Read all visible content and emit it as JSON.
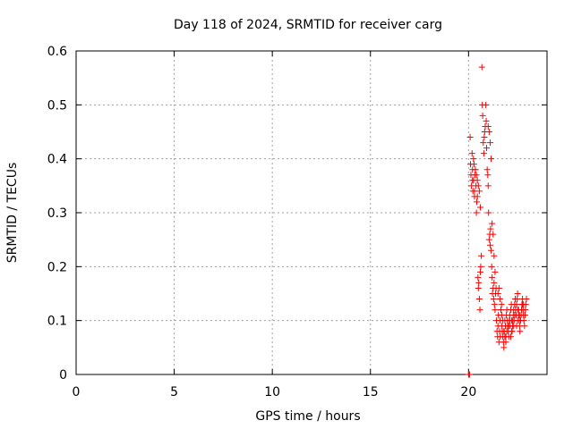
{
  "chart_data": {
    "type": "scatter",
    "title": "Day 118 of 2024, SRMTID for receiver carg",
    "xlabel": "GPS time / hours",
    "ylabel": "SRMTID / TECUs",
    "xlim": [
      0,
      24
    ],
    "ylim": [
      0,
      0.6
    ],
    "xticks": [
      0,
      5,
      10,
      15,
      20
    ],
    "xtick_labels": [
      "0",
      "5",
      "10",
      "15",
      "20"
    ],
    "yticks": [
      0,
      0.1,
      0.2,
      0.3,
      0.4,
      0.5,
      0.6
    ],
    "ytick_labels": [
      "0",
      "0.1",
      "0.2",
      "0.3",
      "0.4",
      "0.5",
      "0.6"
    ],
    "grid": true,
    "marker": "+",
    "series": [
      {
        "name": "SRMTID",
        "color": "#ff0000",
        "x": [
          20.0,
          20.02,
          20.05,
          20.08,
          20.1,
          20.12,
          20.15,
          20.18,
          20.2,
          20.22,
          20.25,
          20.28,
          20.3,
          20.32,
          20.35,
          20.38,
          20.4,
          20.42,
          20.45,
          20.48,
          20.5,
          20.52,
          20.55,
          20.58,
          20.6,
          20.62,
          20.65,
          20.68,
          20.7,
          20.72,
          20.75,
          20.78,
          20.8,
          20.82,
          20.85,
          20.88,
          20.9,
          20.92,
          20.95,
          20.98,
          21.0,
          21.02,
          21.05,
          21.08,
          21.1,
          21.12,
          21.15,
          21.18,
          21.2,
          21.22,
          21.25,
          21.28,
          21.3,
          21.32,
          21.35,
          21.38,
          21.4,
          21.42,
          21.45,
          21.48,
          21.5,
          21.52,
          21.55,
          21.58,
          21.6,
          21.62,
          21.65,
          21.68,
          21.7,
          21.72,
          21.75,
          21.78,
          21.8,
          21.82,
          21.85,
          21.88,
          21.9,
          21.92,
          21.95,
          21.98,
          22.0,
          22.02,
          22.05,
          22.08,
          22.1,
          22.12,
          22.15,
          22.18,
          22.2,
          22.22,
          22.25,
          22.28,
          22.3,
          22.32,
          22.35,
          22.38,
          22.4,
          22.42,
          22.45,
          22.48,
          22.5,
          22.52,
          22.55,
          22.58,
          22.6,
          22.62,
          22.65,
          22.68,
          22.7,
          22.72,
          22.75,
          22.78,
          22.8,
          22.82,
          22.85,
          22.88,
          22.9,
          22.92,
          22.95,
          20.2,
          20.3,
          20.4,
          20.5,
          20.6,
          21.0,
          21.1,
          21.2,
          21.3,
          21.5,
          21.6,
          21.7,
          21.8,
          21.9,
          22.0,
          22.1,
          22.2,
          22.3,
          22.4,
          22.5,
          22.6,
          22.7,
          22.8,
          20.25,
          20.35,
          20.45,
          20.55,
          21.05,
          21.15,
          21.25,
          21.35,
          21.55,
          21.65,
          21.75,
          21.85,
          21.95,
          22.05,
          22.15,
          22.25,
          22.35,
          22.45,
          22.55,
          22.65,
          22.75
        ],
        "y": [
          0.0,
          0.0,
          0.0,
          0.44,
          0.39,
          0.37,
          0.35,
          0.41,
          0.38,
          0.34,
          0.36,
          0.39,
          0.33,
          0.37,
          0.38,
          0.35,
          0.3,
          0.32,
          0.36,
          0.18,
          0.16,
          0.17,
          0.14,
          0.12,
          0.19,
          0.2,
          0.22,
          0.57,
          0.5,
          0.48,
          0.43,
          0.41,
          0.44,
          0.45,
          0.46,
          0.5,
          0.47,
          0.42,
          0.38,
          0.37,
          0.35,
          0.3,
          0.25,
          0.26,
          0.24,
          0.27,
          0.23,
          0.2,
          0.18,
          0.15,
          0.16,
          0.14,
          0.17,
          0.13,
          0.12,
          0.15,
          0.16,
          0.1,
          0.08,
          0.07,
          0.09,
          0.11,
          0.06,
          0.08,
          0.1,
          0.07,
          0.12,
          0.13,
          0.09,
          0.08,
          0.07,
          0.06,
          0.05,
          0.08,
          0.1,
          0.09,
          0.07,
          0.11,
          0.12,
          0.1,
          0.09,
          0.08,
          0.07,
          0.1,
          0.11,
          0.09,
          0.12,
          0.13,
          0.1,
          0.08,
          0.09,
          0.11,
          0.12,
          0.1,
          0.13,
          0.14,
          0.12,
          0.11,
          0.13,
          0.14,
          0.15,
          0.12,
          0.11,
          0.1,
          0.09,
          0.08,
          0.1,
          0.11,
          0.12,
          0.13,
          0.14,
          0.12,
          0.11,
          0.1,
          0.09,
          0.11,
          0.12,
          0.13,
          0.14,
          0.36,
          0.34,
          0.37,
          0.35,
          0.31,
          0.46,
          0.43,
          0.28,
          0.22,
          0.15,
          0.14,
          0.11,
          0.08,
          0.06,
          0.09,
          0.1,
          0.08,
          0.09,
          0.12,
          0.1,
          0.11,
          0.12,
          0.13,
          0.4,
          0.38,
          0.33,
          0.34,
          0.45,
          0.4,
          0.26,
          0.19,
          0.16,
          0.12,
          0.1,
          0.07,
          0.08,
          0.09,
          0.07,
          0.1,
          0.11,
          0.09,
          0.12,
          0.1,
          0.13
        ]
      }
    ]
  }
}
